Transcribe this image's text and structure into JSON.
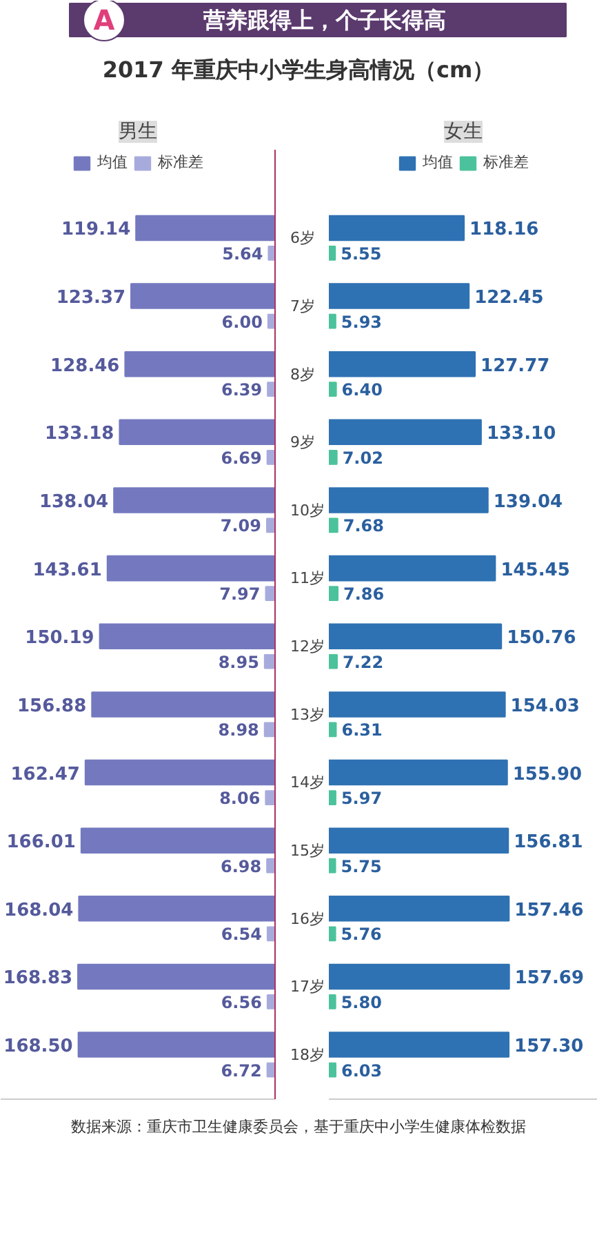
{
  "chart_data": [
    {
      "type": "bar",
      "orientation": "horizontal",
      "title": "2017 年重庆中小学生身高情况（cm）",
      "subtitle": "男生",
      "annotations": [
        "A",
        "营养跟得上，个子长得高"
      ],
      "categories": [
        "6岁",
        "7岁",
        "8岁",
        "9岁",
        "10岁",
        "11岁",
        "12岁",
        "13岁",
        "14岁",
        "15岁",
        "16岁",
        "17岁",
        "18岁"
      ],
      "series": [
        {
          "name": "均值",
          "color": "#7479bf",
          "values": [
            119.14,
            123.37,
            128.46,
            133.18,
            138.04,
            143.61,
            150.19,
            156.88,
            162.47,
            166.01,
            168.04,
            168.83,
            168.5
          ],
          "value_labels": [
            "119.14",
            "123.37",
            "128.46",
            "133.18",
            "138.04",
            "143.61",
            "150.19",
            "156.88",
            "162.47",
            "166.01",
            "168.04",
            "168.83",
            "168.50"
          ]
        },
        {
          "name": "标准差",
          "color": "#a7abdc",
          "values": [
            5.64,
            6.0,
            6.39,
            6.69,
            7.09,
            7.97,
            8.95,
            8.98,
            8.06,
            6.98,
            6.54,
            6.56,
            6.72
          ],
          "value_labels": [
            "5.64",
            "6.00",
            "6.39",
            "6.69",
            "7.09",
            "7.97",
            "8.95",
            "8.98",
            "8.06",
            "6.98",
            "6.54",
            "6.56",
            "6.72"
          ]
        }
      ],
      "xlim": [
        235,
        0
      ],
      "legend": "top",
      "tick_labels": "y"
    },
    {
      "type": "bar",
      "orientation": "horizontal",
      "subtitle": "女生",
      "annotations": [
        "数据来源：重庆市卫生健康委员会，基于重庆中小学生健康体检数据"
      ],
      "series": [
        {
          "name": "均值",
          "color": "#2f72b3",
          "values": [
            118.16,
            122.45,
            127.77,
            133.1,
            139.04,
            145.45,
            150.76,
            154.03,
            155.9,
            156.81,
            157.46,
            157.69,
            157.3
          ],
          "value_labels": [
            "118.16",
            "122.45",
            "127.77",
            "133.10",
            "139.04",
            "145.45",
            "150.76",
            "154.03",
            "155.90",
            "156.81",
            "157.46",
            "157.69",
            "157.30"
          ]
        },
        {
          "name": "标准差",
          "color": "#4cc29c",
          "values": [
            5.55,
            5.93,
            6.4,
            7.02,
            7.68,
            7.86,
            7.22,
            6.31,
            5.97,
            5.75,
            5.76,
            5.8,
            6.03
          ],
          "value_labels": [
            "5.55",
            "5.93",
            "6.40",
            "7.02",
            "7.68",
            "7.86",
            "7.22",
            "6.31",
            "5.97",
            "5.75",
            "5.76",
            "5.80",
            "6.03"
          ]
        }
      ],
      "xlim": [
        0,
        235
      ],
      "legend": "top",
      "tick_labels": false
    }
  ]
}
